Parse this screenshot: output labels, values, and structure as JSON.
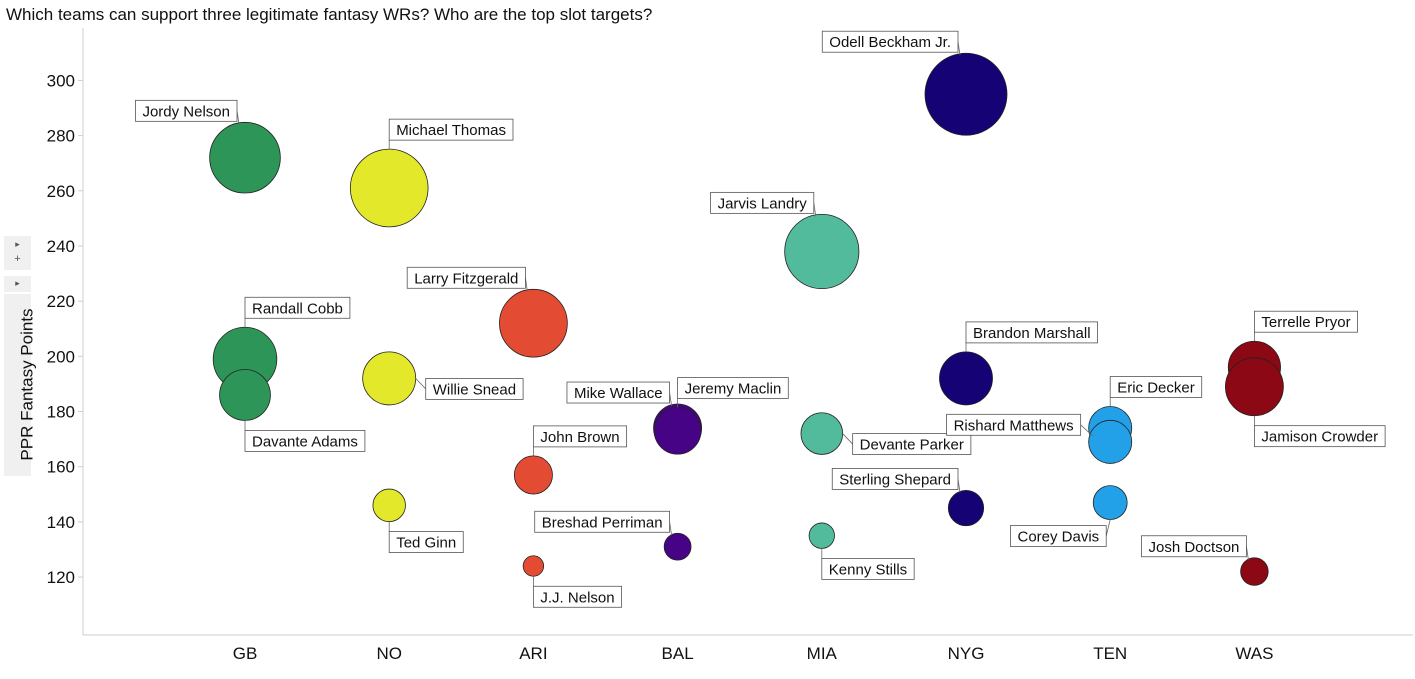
{
  "title": "Which teams can support three legitimate fantasy WRs? Who are the top slot targets?",
  "controls": {
    "expand_label": "+"
  },
  "chart_data": {
    "type": "scatter",
    "title": "Which teams can support three legitimate fantasy WRs? Who are the top slot targets?",
    "xlabel": "",
    "ylabel": "PPR Fantasy Points",
    "categories": [
      "GB",
      "NO",
      "ARI",
      "BAL",
      "MIA",
      "NYG",
      "TEN",
      "WAS"
    ],
    "yticks": [
      120,
      140,
      160,
      180,
      200,
      220,
      240,
      260,
      280,
      300
    ],
    "ylim": [
      99,
      319
    ],
    "grid": false,
    "legend": "none",
    "team_colors": {
      "GB": "#2e9558",
      "NO": "#e4e82b",
      "ARI": "#e34c32",
      "BAL": "#460385",
      "MIA": "#52bb9c",
      "NYG": "#150275",
      "TEN": "#22a0e8",
      "WAS": "#8b0814"
    },
    "points": [
      {
        "team": "GB",
        "name": "Jordy Nelson",
        "y": 272,
        "size": 1.0,
        "label_pos": "above-left"
      },
      {
        "team": "GB",
        "name": "Randall Cobb",
        "y": 199,
        "size": 0.9,
        "label_pos": "above-right"
      },
      {
        "team": "GB",
        "name": "Davante Adams",
        "y": 186,
        "size": 0.72,
        "label_pos": "below-right"
      },
      {
        "team": "NO",
        "name": "Michael Thomas",
        "y": 261,
        "size": 1.1,
        "label_pos": "above-right"
      },
      {
        "team": "NO",
        "name": "Willie Snead",
        "y": 192,
        "size": 0.75,
        "label_pos": "right"
      },
      {
        "team": "NO",
        "name": "Ted Ginn",
        "y": 146,
        "size": 0.46,
        "label_pos": "below-right"
      },
      {
        "team": "ARI",
        "name": "Larry Fitzgerald",
        "y": 212,
        "size": 0.96,
        "label_pos": "above-left"
      },
      {
        "team": "ARI",
        "name": "John Brown",
        "y": 157,
        "size": 0.54,
        "label_pos": "above-right"
      },
      {
        "team": "ARI",
        "name": "J.J. Nelson",
        "y": 124,
        "size": 0.29,
        "label_pos": "below-right"
      },
      {
        "team": "BAL",
        "name": "Mike Wallace",
        "y": 174,
        "size": 0.68,
        "label_pos": "above-left"
      },
      {
        "team": "BAL",
        "name": "Jeremy Maclin",
        "y": 173,
        "size": 0.66,
        "label_pos": "above-right"
      },
      {
        "team": "BAL",
        "name": "Breshad Perriman",
        "y": 131,
        "size": 0.38,
        "label_pos": "above-left"
      },
      {
        "team": "MIA",
        "name": "Jarvis Landry",
        "y": 238,
        "size": 1.05,
        "label_pos": "above-left"
      },
      {
        "team": "MIA",
        "name": "Devante Parker",
        "y": 172,
        "size": 0.59,
        "label_pos": "right"
      },
      {
        "team": "MIA",
        "name": "Kenny Stills",
        "y": 135,
        "size": 0.36,
        "label_pos": "below-right"
      },
      {
        "team": "NYG",
        "name": "Odell Beckham Jr.",
        "y": 295,
        "size": 1.16,
        "label_pos": "above-left"
      },
      {
        "team": "NYG",
        "name": "Brandon Marshall",
        "y": 192,
        "size": 0.75,
        "label_pos": "above-right"
      },
      {
        "team": "NYG",
        "name": "Sterling Shepard",
        "y": 145,
        "size": 0.5,
        "label_pos": "above-left"
      },
      {
        "team": "TEN",
        "name": "Eric Decker",
        "y": 174,
        "size": 0.61,
        "label_pos": "above-right"
      },
      {
        "team": "TEN",
        "name": "Rishard Matthews",
        "y": 169,
        "size": 0.61,
        "label_pos": "left"
      },
      {
        "team": "TEN",
        "name": "Corey Davis",
        "y": 147,
        "size": 0.48,
        "label_pos": "below-left"
      },
      {
        "team": "WAS",
        "name": "Terrelle Pryor",
        "y": 196,
        "size": 0.74,
        "label_pos": "above-right"
      },
      {
        "team": "WAS",
        "name": "Jamison Crowder",
        "y": 189,
        "size": 0.82,
        "label_pos": "below-right"
      },
      {
        "team": "WAS",
        "name": "Josh Doctson",
        "y": 122,
        "size": 0.39,
        "label_pos": "above-left"
      }
    ]
  }
}
